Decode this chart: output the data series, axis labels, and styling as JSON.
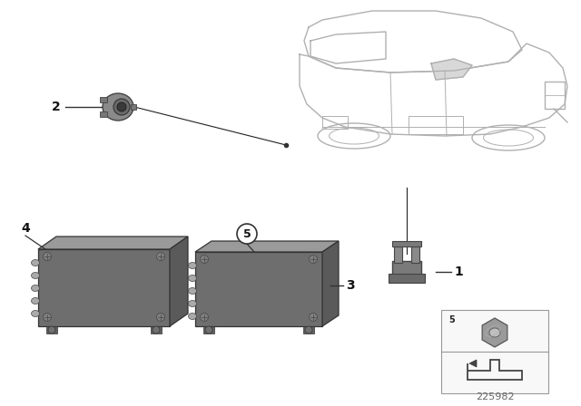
{
  "bg_color": "#ffffff",
  "line_color": "#888888",
  "dark_color": "#555555",
  "label_color": "#111111",
  "part_fill": "#7a7a7a",
  "part_light": "#9a9a9a",
  "part_dark": "#4a4a4a",
  "diagram_id": "225982",
  "car_line": "#aaaaaa",
  "car_lw": 1.0,
  "inset_bg": "#f5f5f5",
  "inset_border": "#bbbbbb"
}
